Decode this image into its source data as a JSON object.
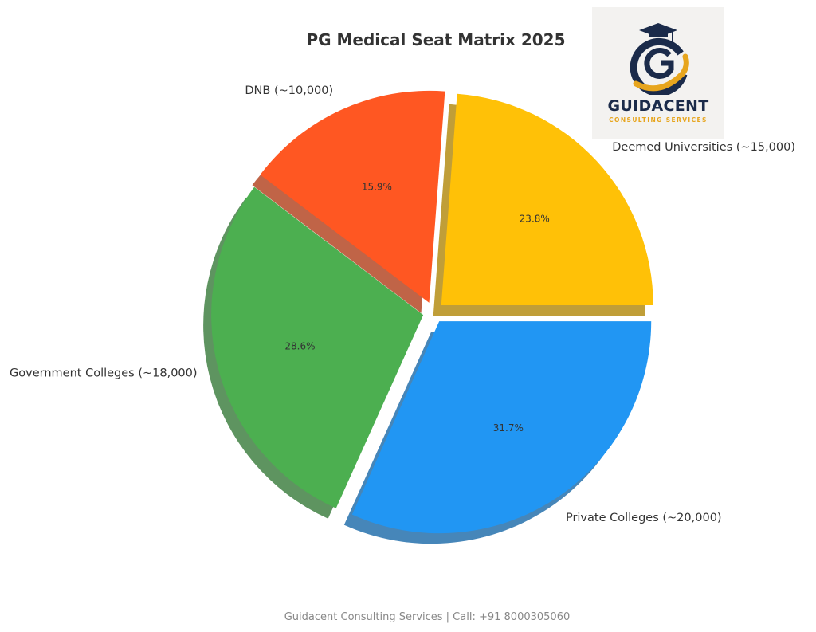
{
  "chart_data": {
    "type": "pie",
    "title": "PG Medical Seat Matrix 2025",
    "slices": [
      {
        "label": "Deemed Universities (~15,000)",
        "value": 15000,
        "pct": "23.8%",
        "color": "#FFC107"
      },
      {
        "label": "DNB (~10,000)",
        "value": 10000,
        "pct": "15.9%",
        "color": "#FF5722"
      },
      {
        "label": "Government Colleges (~18,000)",
        "value": 18000,
        "pct": "28.6%",
        "color": "#4CAF50"
      },
      {
        "label": "Private Colleges (~20,000)",
        "value": 20000,
        "pct": "31.7%",
        "color": "#2196F3"
      }
    ],
    "shadow": true,
    "exploded": true
  },
  "logo": {
    "name": "GUIDACENT",
    "subtitle": "CONSULTING SERVICES",
    "navy": "#1b2b4a",
    "gold": "#e7a51d"
  },
  "footer": "Guidacent Consulting Services | Call: +91 8000305060"
}
